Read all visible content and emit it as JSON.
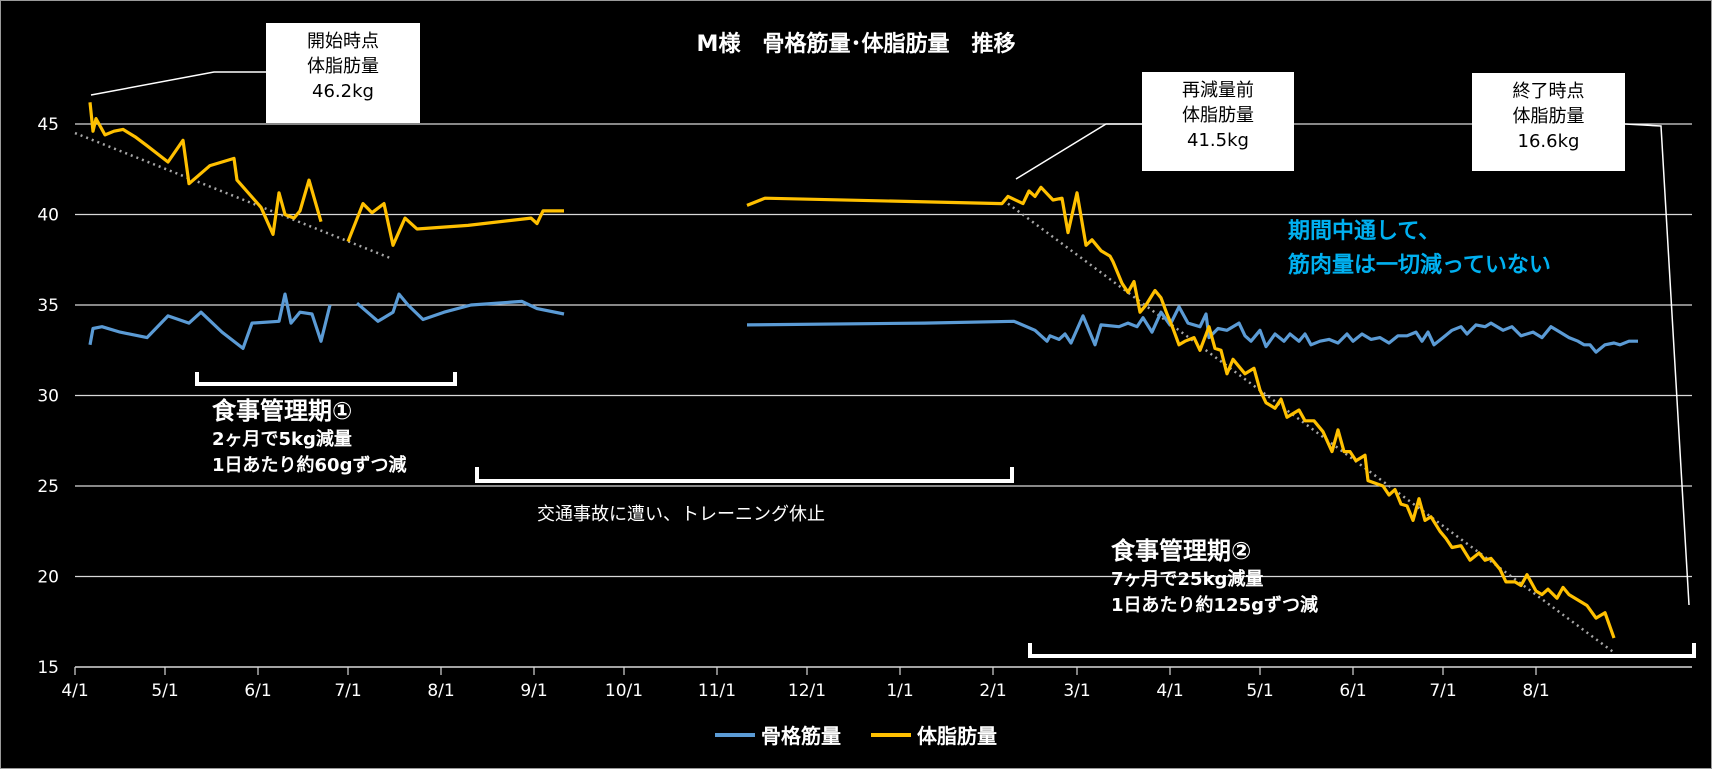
{
  "chart_data": {
    "type": "line",
    "title": "M様　骨格筋量･体脂肪量　推移",
    "ylim": [
      15,
      46
    ],
    "yticks": [
      15,
      20,
      25,
      30,
      35,
      40,
      45
    ],
    "xlabels": [
      "4/1",
      "5/1",
      "6/1",
      "7/1",
      "8/1",
      "9/1",
      "10/1",
      "11/1",
      "12/1",
      "1/1",
      "2/1",
      "3/1",
      "4/1",
      "5/1",
      "6/1",
      "7/1",
      "8/1"
    ],
    "grid": true,
    "legend_position": "bottom",
    "series": [
      {
        "name": "骨格筋量",
        "color": "#5b9bd5",
        "segments": [
          [
            [
              5,
              32.8
            ],
            [
              6,
              33.7
            ],
            [
              9,
              33.8
            ],
            [
              15,
              33.5
            ],
            [
              24,
              33.2
            ],
            [
              31,
              34.4
            ],
            [
              38,
              34.0
            ],
            [
              42,
              34.6
            ],
            [
              49,
              33.5
            ],
            [
              56,
              32.6
            ],
            [
              59,
              34.0
            ],
            [
              68,
              34.1
            ],
            [
              70,
              35.6
            ],
            [
              72,
              34.0
            ],
            [
              75,
              34.6
            ],
            [
              79,
              34.5
            ],
            [
              82,
              33.0
            ],
            [
              85,
              35.0
            ]
          ],
          [
            [
              94,
              35.1
            ],
            [
              101,
              34.1
            ],
            [
              106,
              34.6
            ],
            [
              108,
              35.6
            ],
            [
              111,
              35.0
            ],
            [
              116,
              34.2
            ],
            [
              123,
              34.6
            ],
            [
              132,
              35.0
            ],
            [
              149,
              35.2
            ],
            [
              154,
              34.8
            ],
            [
              163,
              34.5
            ]
          ],
          [
            [
              224,
              33.9
            ],
            [
              283,
              34.0
            ],
            [
              313,
              34.1
            ],
            [
              320,
              33.6
            ],
            [
              324,
              33.0
            ],
            [
              325,
              33.3
            ],
            [
              328,
              33.1
            ],
            [
              330,
              33.4
            ],
            [
              332,
              32.9
            ],
            [
              336,
              34.4
            ],
            [
              340,
              32.8
            ],
            [
              342,
              33.9
            ],
            [
              348,
              33.8
            ],
            [
              351,
              34.0
            ],
            [
              354,
              33.8
            ],
            [
              356,
              34.3
            ],
            [
              359,
              33.5
            ],
            [
              362,
              34.6
            ],
            [
              365,
              33.9
            ],
            [
              368,
              34.9
            ],
            [
              371,
              34.0
            ],
            [
              375,
              33.8
            ],
            [
              377,
              34.5
            ],
            [
              378,
              33.2
            ],
            [
              381,
              33.7
            ],
            [
              384,
              33.6
            ],
            [
              388,
              34.0
            ],
            [
              390,
              33.3
            ],
            [
              392,
              33.0
            ],
            [
              395,
              33.6
            ],
            [
              397,
              32.7
            ],
            [
              400,
              33.4
            ],
            [
              403,
              33.0
            ],
            [
              405,
              33.4
            ],
            [
              408,
              33.0
            ],
            [
              410,
              33.4
            ],
            [
              412,
              32.8
            ],
            [
              415,
              33.0
            ],
            [
              418,
              33.1
            ],
            [
              421,
              32.9
            ],
            [
              424,
              33.4
            ],
            [
              426,
              33.0
            ],
            [
              429,
              33.4
            ],
            [
              432,
              33.1
            ],
            [
              435,
              33.2
            ],
            [
              438,
              32.9
            ],
            [
              441,
              33.3
            ],
            [
              444,
              33.3
            ],
            [
              447,
              33.5
            ],
            [
              449,
              33.0
            ],
            [
              451,
              33.5
            ],
            [
              453,
              32.8
            ],
            [
              456,
              33.2
            ],
            [
              459,
              33.6
            ],
            [
              462,
              33.8
            ],
            [
              464,
              33.4
            ],
            [
              467,
              33.9
            ],
            [
              470,
              33.8
            ],
            [
              472,
              34.0
            ],
            [
              476,
              33.6
            ],
            [
              479,
              33.8
            ],
            [
              482,
              33.3
            ],
            [
              486,
              33.5
            ],
            [
              489,
              33.2
            ],
            [
              492,
              33.8
            ],
            [
              495,
              33.5
            ],
            [
              498,
              33.2
            ],
            [
              501,
              33.0
            ],
            [
              503,
              32.8
            ],
            [
              505,
              32.8
            ],
            [
              507,
              32.4
            ],
            [
              510,
              32.8
            ],
            [
              513,
              32.9
            ],
            [
              515,
              32.8
            ],
            [
              518,
              33.0
            ],
            [
              521,
              33.0
            ]
          ]
        ]
      },
      {
        "name": "体脂肪量",
        "color": "#ffc000",
        "segments": [
          [
            [
              5,
              46.2
            ],
            [
              6,
              44.6
            ],
            [
              7,
              45.3
            ],
            [
              10,
              44.4
            ],
            [
              13,
              44.6
            ],
            [
              16,
              44.7
            ],
            [
              20,
              44.3
            ],
            [
              24,
              43.8
            ],
            [
              31,
              42.9
            ],
            [
              36,
              44.1
            ],
            [
              38,
              41.7
            ],
            [
              45,
              42.7
            ],
            [
              53,
              43.1
            ],
            [
              54,
              41.9
            ],
            [
              62,
              40.4
            ],
            [
              66,
              38.9
            ],
            [
              68,
              41.2
            ],
            [
              70,
              40.0
            ],
            [
              73,
              39.8
            ],
            [
              75,
              40.2
            ],
            [
              78,
              41.9
            ],
            [
              82,
              39.6
            ]
          ],
          [
            [
              91,
              38.5
            ],
            [
              96,
              40.6
            ],
            [
              99,
              40.1
            ],
            [
              103,
              40.6
            ],
            [
              106,
              38.3
            ],
            [
              110,
              39.8
            ],
            [
              114,
              39.2
            ],
            [
              131,
              39.4
            ],
            [
              152,
              39.8
            ],
            [
              154,
              39.5
            ],
            [
              156,
              40.2
            ],
            [
              163,
              40.2
            ]
          ],
          [
            [
              224,
              40.5
            ],
            [
              230,
              40.9
            ],
            [
              309,
              40.6
            ],
            [
              311,
              41.0
            ],
            [
              316,
              40.6
            ],
            [
              318,
              41.3
            ],
            [
              320,
              41.0
            ],
            [
              322,
              41.5
            ],
            [
              326,
              40.8
            ],
            [
              329,
              40.9
            ],
            [
              331,
              39.0
            ],
            [
              334,
              41.2
            ],
            [
              337,
              38.3
            ],
            [
              339,
              38.6
            ],
            [
              342,
              38.0
            ],
            [
              345,
              37.7
            ],
            [
              346,
              37.4
            ],
            [
              349,
              36.2
            ],
            [
              351,
              35.7
            ],
            [
              353,
              36.3
            ],
            [
              355,
              34.6
            ],
            [
              357,
              35.0
            ],
            [
              360,
              35.8
            ],
            [
              362,
              35.4
            ],
            [
              364,
              34.5
            ],
            [
              366,
              33.7
            ],
            [
              368,
              32.8
            ],
            [
              370,
              33.0
            ],
            [
              373,
              33.2
            ],
            [
              375,
              32.5
            ],
            [
              378,
              33.8
            ],
            [
              380,
              32.6
            ],
            [
              382,
              32.5
            ],
            [
              384,
              31.2
            ],
            [
              386,
              32.0
            ],
            [
              390,
              31.2
            ],
            [
              393,
              31.5
            ],
            [
              395,
              30.3
            ],
            [
              397,
              29.6
            ],
            [
              400,
              29.3
            ],
            [
              402,
              29.8
            ],
            [
              404,
              28.8
            ],
            [
              408,
              29.2
            ],
            [
              410,
              28.6
            ],
            [
              413,
              28.6
            ],
            [
              416,
              28.0
            ],
            [
              419,
              26.9
            ],
            [
              421,
              28.1
            ],
            [
              423,
              26.9
            ],
            [
              425,
              26.9
            ],
            [
              427,
              26.4
            ],
            [
              430,
              26.7
            ],
            [
              431,
              25.3
            ],
            [
              436,
              25.0
            ],
            [
              438,
              24.5
            ],
            [
              440,
              24.8
            ],
            [
              442,
              24.0
            ],
            [
              444,
              23.9
            ],
            [
              446,
              23.1
            ],
            [
              448,
              24.3
            ],
            [
              450,
              23.1
            ],
            [
              452,
              23.3
            ],
            [
              455,
              22.5
            ],
            [
              457,
              22.1
            ],
            [
              459,
              21.6
            ],
            [
              462,
              21.7
            ],
            [
              465,
              20.9
            ],
            [
              468,
              21.3
            ],
            [
              470,
              20.9
            ],
            [
              472,
              21.0
            ],
            [
              475,
              20.4
            ],
            [
              477,
              19.7
            ],
            [
              480,
              19.7
            ],
            [
              482,
              19.5
            ],
            [
              484,
              20.1
            ],
            [
              487,
              19.2
            ],
            [
              489,
              19.0
            ],
            [
              491,
              19.3
            ],
            [
              494,
              18.8
            ],
            [
              496,
              19.4
            ],
            [
              498,
              19.0
            ],
            [
              500,
              18.8
            ],
            [
              504,
              18.4
            ],
            [
              507,
              17.7
            ],
            [
              510,
              18.0
            ],
            [
              513,
              16.6
            ]
          ]
        ]
      }
    ],
    "trendlines": [
      {
        "color": "#a6a6a6",
        "points": [
          [
            0,
            44.5
          ],
          [
            105,
            37.6
          ]
        ]
      },
      {
        "color": "#a6a6a6",
        "points": [
          [
            311,
            40.6
          ],
          [
            513,
            15.8
          ]
        ]
      }
    ]
  },
  "callouts": {
    "start": [
      "開始時点",
      "体脂肪量",
      "46.2kg"
    ],
    "pre": [
      "再減量前",
      "体脂肪量",
      "41.5kg"
    ],
    "end": [
      "終了時点",
      "体脂肪量",
      "16.6kg"
    ]
  },
  "notes": {
    "phase1_title": "食事管理期①",
    "phase1_line1": "2ヶ月で5kg減量",
    "phase1_line2": "1日あたり約60gずつ減",
    "accident": "交通事故に遭い、トレーニング休止",
    "phase2_title": "食事管理期②",
    "phase2_line1": "7ヶ月で25kg減量",
    "phase2_line2": "1日あたり約125gずつ減",
    "highlight_line1": "期間中通して、",
    "highlight_line2": "筋肉量は一切減っていない",
    "highlight_color": "#00b0f0"
  }
}
